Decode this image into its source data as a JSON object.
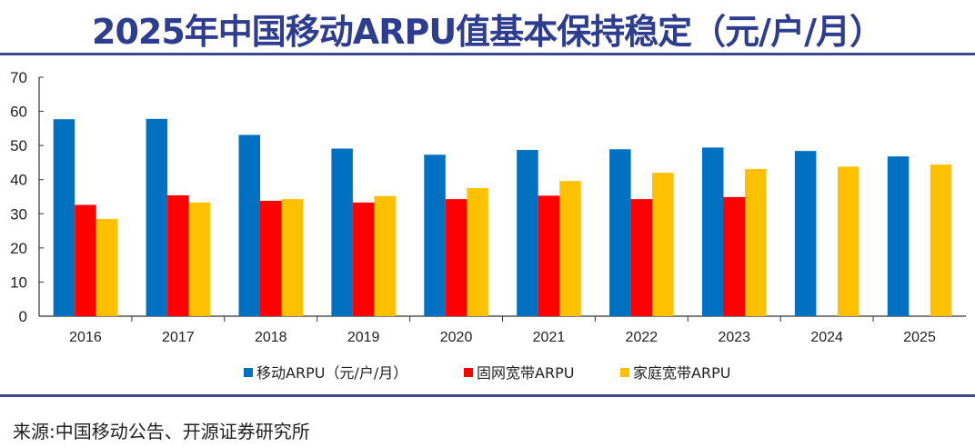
{
  "title": "2025年中国移动ARPU值基本保持稳定（元/户/月）",
  "source": "来源:中国移动公告、开源证券研究所",
  "chart_data": {
    "type": "bar",
    "categories": [
      "2016",
      "2017",
      "2018",
      "2019",
      "2020",
      "2021",
      "2022",
      "2023",
      "2024",
      "2025"
    ],
    "series": [
      {
        "name": "移动ARPU（元/户/月）",
        "color": "#0070c0",
        "values": [
          57.7,
          57.8,
          53.1,
          49.1,
          47.3,
          48.7,
          48.9,
          49.4,
          48.4,
          46.8
        ]
      },
      {
        "name": "固网宽带ARPU",
        "color": "#ff0000",
        "values": [
          32.6,
          35.4,
          33.8,
          33.3,
          34.3,
          35.3,
          34.3,
          34.9,
          null,
          null
        ]
      },
      {
        "name": "家庭宽带ARPU",
        "color": "#ffc000",
        "values": [
          28.5,
          33.3,
          34.3,
          35.2,
          37.5,
          39.6,
          42.0,
          43.1,
          43.8,
          44.4
        ]
      }
    ],
    "ylim": [
      0,
      70
    ],
    "yticks": [
      0,
      10,
      20,
      30,
      40,
      50,
      60,
      70
    ],
    "grid": false,
    "legend": "bottom"
  }
}
